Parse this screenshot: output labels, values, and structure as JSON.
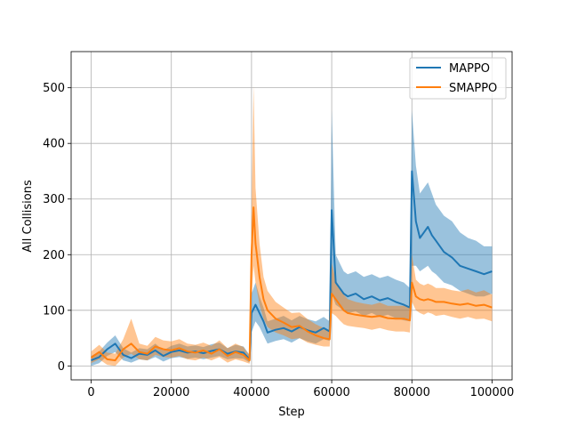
{
  "chart_data": {
    "type": "line",
    "title": "",
    "xlabel": "Step",
    "ylabel": "All Collisions",
    "xlim": [
      -5000,
      105000
    ],
    "ylim": [
      -25,
      565
    ],
    "xticks": [
      0,
      20000,
      40000,
      60000,
      80000,
      100000
    ],
    "xtick_labels": [
      "0",
      "20000",
      "40000",
      "60000",
      "80000",
      "100000"
    ],
    "yticks": [
      0,
      100,
      200,
      300,
      400,
      500
    ],
    "ytick_labels": [
      "0",
      "100",
      "200",
      "300",
      "400",
      "500"
    ],
    "grid": true,
    "legend_position": "top-right",
    "shaded_band": "variation range",
    "series": [
      {
        "name": "MAPPO",
        "color": "#1f77b4",
        "points": [
          [
            0,
            10
          ],
          [
            2000,
            16
          ],
          [
            4000,
            30
          ],
          [
            6000,
            40
          ],
          [
            8000,
            20
          ],
          [
            10000,
            14
          ],
          [
            12000,
            22
          ],
          [
            14000,
            20
          ],
          [
            16000,
            28
          ],
          [
            18000,
            18
          ],
          [
            20000,
            25
          ],
          [
            22000,
            28
          ],
          [
            24000,
            24
          ],
          [
            26000,
            26
          ],
          [
            28000,
            23
          ],
          [
            30000,
            27
          ],
          [
            32000,
            30
          ],
          [
            34000,
            22
          ],
          [
            36000,
            26
          ],
          [
            38000,
            24
          ],
          [
            39500,
            12
          ],
          [
            40000,
            95
          ],
          [
            41000,
            110
          ],
          [
            42000,
            95
          ],
          [
            43000,
            80
          ],
          [
            44000,
            60
          ],
          [
            46000,
            65
          ],
          [
            48000,
            68
          ],
          [
            50000,
            62
          ],
          [
            52000,
            70
          ],
          [
            54000,
            64
          ],
          [
            56000,
            60
          ],
          [
            58000,
            68
          ],
          [
            59500,
            62
          ],
          [
            60000,
            280
          ],
          [
            61000,
            150
          ],
          [
            62000,
            140
          ],
          [
            63000,
            130
          ],
          [
            64000,
            125
          ],
          [
            66000,
            130
          ],
          [
            68000,
            120
          ],
          [
            70000,
            125
          ],
          [
            72000,
            118
          ],
          [
            74000,
            122
          ],
          [
            76000,
            115
          ],
          [
            78000,
            110
          ],
          [
            79500,
            105
          ],
          [
            80000,
            350
          ],
          [
            81000,
            260
          ],
          [
            82000,
            230
          ],
          [
            83000,
            240
          ],
          [
            84000,
            250
          ],
          [
            85000,
            235
          ],
          [
            86000,
            225
          ],
          [
            88000,
            205
          ],
          [
            90000,
            195
          ],
          [
            92000,
            180
          ],
          [
            94000,
            175
          ],
          [
            96000,
            170
          ],
          [
            98000,
            165
          ],
          [
            100000,
            170
          ]
        ],
        "band_low": [
          0,
          5,
          18,
          25,
          10,
          6,
          12,
          10,
          16,
          8,
          14,
          16,
          13,
          15,
          12,
          15,
          18,
          12,
          14,
          13,
          6,
          60,
          80,
          70,
          55,
          40,
          45,
          48,
          42,
          50,
          44,
          40,
          48,
          45,
          130,
          110,
          105,
          98,
          95,
          98,
          90,
          95,
          88,
          92,
          86,
          82,
          80,
          180,
          180,
          170,
          175,
          180,
          170,
          165,
          150,
          145,
          135,
          130,
          125,
          125,
          130
        ],
        "band_high": [
          18,
          26,
          42,
          55,
          32,
          24,
          32,
          30,
          40,
          28,
          36,
          40,
          35,
          37,
          34,
          39,
          42,
          32,
          38,
          35,
          20,
          130,
          150,
          125,
          105,
          80,
          85,
          90,
          82,
          90,
          84,
          80,
          88,
          80,
          460,
          200,
          185,
          170,
          165,
          170,
          160,
          165,
          158,
          162,
          155,
          150,
          140,
          460,
          360,
          310,
          320,
          330,
          310,
          290,
          270,
          260,
          240,
          230,
          225,
          215,
          215
        ]
      },
      {
        "name": "SMAPPO",
        "color": "#ff7f0e",
        "points": [
          [
            0,
            15
          ],
          [
            2000,
            25
          ],
          [
            4000,
            12
          ],
          [
            6000,
            10
          ],
          [
            8000,
            30
          ],
          [
            10000,
            40
          ],
          [
            12000,
            25
          ],
          [
            14000,
            22
          ],
          [
            16000,
            35
          ],
          [
            18000,
            30
          ],
          [
            20000,
            28
          ],
          [
            22000,
            32
          ],
          [
            24000,
            26
          ],
          [
            26000,
            24
          ],
          [
            28000,
            28
          ],
          [
            30000,
            22
          ],
          [
            32000,
            30
          ],
          [
            34000,
            18
          ],
          [
            36000,
            25
          ],
          [
            38000,
            20
          ],
          [
            39500,
            10
          ],
          [
            40000,
            200
          ],
          [
            40500,
            285
          ],
          [
            41000,
            220
          ],
          [
            42000,
            160
          ],
          [
            43000,
            120
          ],
          [
            44000,
            100
          ],
          [
            46000,
            85
          ],
          [
            48000,
            78
          ],
          [
            50000,
            70
          ],
          [
            52000,
            72
          ],
          [
            54000,
            62
          ],
          [
            56000,
            55
          ],
          [
            58000,
            50
          ],
          [
            59500,
            48
          ],
          [
            60000,
            130
          ],
          [
            61000,
            120
          ],
          [
            62000,
            110
          ],
          [
            63000,
            100
          ],
          [
            64000,
            95
          ],
          [
            66000,
            92
          ],
          [
            68000,
            90
          ],
          [
            70000,
            88
          ],
          [
            72000,
            90
          ],
          [
            74000,
            86
          ],
          [
            76000,
            85
          ],
          [
            78000,
            85
          ],
          [
            79500,
            82
          ],
          [
            80000,
            150
          ],
          [
            81000,
            125
          ],
          [
            82000,
            120
          ],
          [
            83000,
            118
          ],
          [
            84000,
            120
          ],
          [
            85000,
            118
          ],
          [
            86000,
            115
          ],
          [
            88000,
            115
          ],
          [
            90000,
            112
          ],
          [
            92000,
            110
          ],
          [
            94000,
            112
          ],
          [
            96000,
            108
          ],
          [
            98000,
            110
          ],
          [
            100000,
            105
          ]
        ],
        "band_low": [
          5,
          12,
          2,
          0,
          15,
          22,
          12,
          10,
          20,
          16,
          15,
          18,
          12,
          10,
          15,
          10,
          16,
          6,
          12,
          8,
          4,
          120,
          180,
          150,
          110,
          85,
          70,
          60,
          55,
          48,
          50,
          42,
          38,
          35,
          35,
          95,
          90,
          82,
          75,
          72,
          70,
          68,
          65,
          68,
          64,
          62,
          62,
          60,
          115,
          100,
          95,
          92,
          96,
          94,
          90,
          92,
          88,
          85,
          88,
          84,
          85,
          80
        ],
        "band_high": [
          26,
          38,
          24,
          22,
          48,
          85,
          40,
          36,
          52,
          46,
          44,
          48,
          40,
          38,
          42,
          36,
          46,
          32,
          40,
          34,
          18,
          280,
          505,
          320,
          220,
          160,
          135,
          115,
          105,
          95,
          96,
          84,
          75,
          68,
          65,
          185,
          155,
          140,
          128,
          120,
          115,
          112,
          110,
          114,
          108,
          108,
          108,
          104,
          200,
          155,
          148,
          145,
          148,
          145,
          140,
          140,
          136,
          134,
          138,
          132,
          136,
          128
        ]
      }
    ]
  }
}
